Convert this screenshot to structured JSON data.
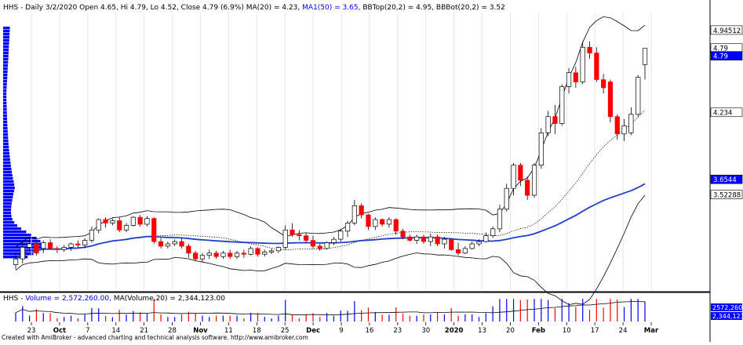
{
  "header": {
    "prefix": "HHS - Daily 3/2/2020 Open 4.65, Hi 4.79, Lo 4.52, Close 4.79 (6.9%) MA(20) = 4.23,",
    "ma50": "MA1(50) = 3.65,",
    "bb": "BBTop(20,2) = 4.95, BBBot(20,2) = 3.52"
  },
  "volume_header": {
    "prefix": "HHS - ",
    "vol": "Volume = 2,572,260.00,",
    "ma": "MA(Volume,20) = 2,344,123.00"
  },
  "footer": "Created with AmiBroker - advanced charting and technical analysis software. http://www.amibroker.com",
  "colors": {
    "up": "#ffffff",
    "down": "#ff0000",
    "blue": "#0000ff",
    "ma50": "#1f3fc8",
    "bb": "#000000",
    "profile": "#0000ff"
  },
  "chart_data": [
    {
      "type": "candlestick",
      "ylim": [
        2.7,
        5.1
      ],
      "x_ticks": [
        "23",
        "Oct",
        "7",
        "14",
        "21",
        "28",
        "Nov",
        "11",
        "18",
        "25",
        "Dec",
        "9",
        "16",
        "23",
        "30",
        "2020",
        "13",
        "20",
        "Feb",
        "10",
        "17",
        "24",
        "Mar"
      ],
      "y_labels": [
        {
          "value": 4.94512,
          "text": "4.94512",
          "style": "white"
        },
        {
          "value": 4.79,
          "text": "4.79",
          "style": "white"
        },
        {
          "value": 4.79,
          "text": "4.79",
          "style": "blue",
          "offset": 10
        },
        {
          "value": 4.234,
          "text": "4.234",
          "style": "white"
        },
        {
          "value": 3.6544,
          "text": "3.6544",
          "style": "blue"
        },
        {
          "value": 3.52288,
          "text": "3.52288",
          "style": "white"
        }
      ],
      "candles": [
        {
          "o": 2.92,
          "h": 3.02,
          "l": 2.88,
          "c": 2.97
        },
        {
          "o": 2.97,
          "h": 3.12,
          "l": 2.93,
          "c": 3.07
        },
        {
          "o": 3.07,
          "h": 3.14,
          "l": 3.04,
          "c": 3.1
        },
        {
          "o": 3.1,
          "h": 3.12,
          "l": 3.0,
          "c": 3.02
        },
        {
          "o": 3.06,
          "h": 3.13,
          "l": 3.02,
          "c": 3.11
        },
        {
          "o": 3.11,
          "h": 3.14,
          "l": 3.05,
          "c": 3.06
        },
        {
          "o": 3.06,
          "h": 3.08,
          "l": 3.02,
          "c": 3.05
        },
        {
          "o": 3.05,
          "h": 3.09,
          "l": 3.03,
          "c": 3.07
        },
        {
          "o": 3.07,
          "h": 3.11,
          "l": 3.04,
          "c": 3.1
        },
        {
          "o": 3.1,
          "h": 3.13,
          "l": 3.07,
          "c": 3.09
        },
        {
          "o": 3.09,
          "h": 3.15,
          "l": 3.06,
          "c": 3.13
        },
        {
          "o": 3.13,
          "h": 3.25,
          "l": 3.11,
          "c": 3.22
        },
        {
          "o": 3.22,
          "h": 3.32,
          "l": 3.19,
          "c": 3.31
        },
        {
          "o": 3.31,
          "h": 3.33,
          "l": 3.24,
          "c": 3.28
        },
        {
          "o": 3.28,
          "h": 3.32,
          "l": 3.26,
          "c": 3.3
        },
        {
          "o": 3.3,
          "h": 3.33,
          "l": 3.2,
          "c": 3.22
        },
        {
          "o": 3.22,
          "h": 3.28,
          "l": 3.2,
          "c": 3.26
        },
        {
          "o": 3.26,
          "h": 3.34,
          "l": 3.25,
          "c": 3.33
        },
        {
          "o": 3.33,
          "h": 3.35,
          "l": 3.25,
          "c": 3.27
        },
        {
          "o": 3.27,
          "h": 3.34,
          "l": 3.25,
          "c": 3.32
        },
        {
          "o": 3.32,
          "h": 3.33,
          "l": 3.1,
          "c": 3.12
        },
        {
          "o": 3.12,
          "h": 3.15,
          "l": 3.06,
          "c": 3.08
        },
        {
          "o": 3.08,
          "h": 3.12,
          "l": 3.06,
          "c": 3.1
        },
        {
          "o": 3.1,
          "h": 3.14,
          "l": 3.08,
          "c": 3.12
        },
        {
          "o": 3.12,
          "h": 3.15,
          "l": 3.06,
          "c": 3.08
        },
        {
          "o": 3.08,
          "h": 3.1,
          "l": 2.98,
          "c": 3.02
        },
        {
          "o": 3.02,
          "h": 3.04,
          "l": 2.95,
          "c": 2.97
        },
        {
          "o": 2.97,
          "h": 3.02,
          "l": 2.94,
          "c": 3.0
        },
        {
          "o": 3.0,
          "h": 3.05,
          "l": 2.97,
          "c": 3.02
        },
        {
          "o": 3.02,
          "h": 3.04,
          "l": 2.97,
          "c": 2.99
        },
        {
          "o": 2.99,
          "h": 3.04,
          "l": 2.97,
          "c": 3.02
        },
        {
          "o": 3.02,
          "h": 3.05,
          "l": 2.97,
          "c": 2.99
        },
        {
          "o": 2.99,
          "h": 3.04,
          "l": 2.97,
          "c": 3.02
        },
        {
          "o": 3.02,
          "h": 3.05,
          "l": 2.98,
          "c": 3.01
        },
        {
          "o": 3.01,
          "h": 3.08,
          "l": 3.0,
          "c": 3.06
        },
        {
          "o": 3.06,
          "h": 3.07,
          "l": 2.99,
          "c": 3.01
        },
        {
          "o": 3.01,
          "h": 3.05,
          "l": 2.99,
          "c": 3.03
        },
        {
          "o": 3.03,
          "h": 3.06,
          "l": 3.01,
          "c": 3.04
        },
        {
          "o": 3.04,
          "h": 3.08,
          "l": 3.02,
          "c": 3.07
        },
        {
          "o": 3.07,
          "h": 3.26,
          "l": 3.05,
          "c": 3.22
        },
        {
          "o": 3.22,
          "h": 3.28,
          "l": 3.16,
          "c": 3.18
        },
        {
          "o": 3.18,
          "h": 3.22,
          "l": 3.13,
          "c": 3.17
        },
        {
          "o": 3.17,
          "h": 3.19,
          "l": 3.11,
          "c": 3.13
        },
        {
          "o": 3.13,
          "h": 3.17,
          "l": 3.06,
          "c": 3.08
        },
        {
          "o": 3.08,
          "h": 3.1,
          "l": 3.04,
          "c": 3.06
        },
        {
          "o": 3.06,
          "h": 3.12,
          "l": 3.05,
          "c": 3.11
        },
        {
          "o": 3.11,
          "h": 3.16,
          "l": 3.09,
          "c": 3.14
        },
        {
          "o": 3.14,
          "h": 3.23,
          "l": 3.12,
          "c": 3.21
        },
        {
          "o": 3.21,
          "h": 3.3,
          "l": 3.16,
          "c": 3.28
        },
        {
          "o": 3.28,
          "h": 3.48,
          "l": 3.26,
          "c": 3.43
        },
        {
          "o": 3.43,
          "h": 3.45,
          "l": 3.32,
          "c": 3.35
        },
        {
          "o": 3.35,
          "h": 3.36,
          "l": 3.22,
          "c": 3.25
        },
        {
          "o": 3.25,
          "h": 3.33,
          "l": 3.22,
          "c": 3.31
        },
        {
          "o": 3.31,
          "h": 3.32,
          "l": 3.25,
          "c": 3.27
        },
        {
          "o": 3.27,
          "h": 3.33,
          "l": 3.24,
          "c": 3.31
        },
        {
          "o": 3.31,
          "h": 3.32,
          "l": 3.18,
          "c": 3.21
        },
        {
          "o": 3.21,
          "h": 3.23,
          "l": 3.14,
          "c": 3.16
        },
        {
          "o": 3.16,
          "h": 3.18,
          "l": 3.12,
          "c": 3.13
        },
        {
          "o": 3.13,
          "h": 3.18,
          "l": 3.1,
          "c": 3.16
        },
        {
          "o": 3.16,
          "h": 3.18,
          "l": 3.1,
          "c": 3.12
        },
        {
          "o": 3.12,
          "h": 3.19,
          "l": 3.08,
          "c": 3.16
        },
        {
          "o": 3.16,
          "h": 3.18,
          "l": 3.08,
          "c": 3.1
        },
        {
          "o": 3.1,
          "h": 3.16,
          "l": 3.06,
          "c": 3.14
        },
        {
          "o": 3.14,
          "h": 3.15,
          "l": 3.04,
          "c": 3.05
        },
        {
          "o": 3.05,
          "h": 3.11,
          "l": 3.0,
          "c": 3.02
        },
        {
          "o": 3.02,
          "h": 3.08,
          "l": 3.01,
          "c": 3.06
        },
        {
          "o": 3.06,
          "h": 3.12,
          "l": 3.05,
          "c": 3.1
        },
        {
          "o": 3.1,
          "h": 3.14,
          "l": 3.08,
          "c": 3.12
        },
        {
          "o": 3.12,
          "h": 3.2,
          "l": 3.11,
          "c": 3.17
        },
        {
          "o": 3.17,
          "h": 3.25,
          "l": 3.15,
          "c": 3.23
        },
        {
          "o": 3.23,
          "h": 3.44,
          "l": 3.2,
          "c": 3.4
        },
        {
          "o": 3.4,
          "h": 3.62,
          "l": 3.38,
          "c": 3.58
        },
        {
          "o": 3.58,
          "h": 3.8,
          "l": 3.52,
          "c": 3.78
        },
        {
          "o": 3.78,
          "h": 3.8,
          "l": 3.6,
          "c": 3.65
        },
        {
          "o": 3.65,
          "h": 3.68,
          "l": 3.48,
          "c": 3.52
        },
        {
          "o": 3.52,
          "h": 3.8,
          "l": 3.5,
          "c": 3.78
        },
        {
          "o": 3.78,
          "h": 4.1,
          "l": 3.75,
          "c": 4.06
        },
        {
          "o": 4.06,
          "h": 4.25,
          "l": 4.03,
          "c": 4.2
        },
        {
          "o": 4.2,
          "h": 4.3,
          "l": 4.05,
          "c": 4.14
        },
        {
          "o": 4.14,
          "h": 4.48,
          "l": 4.12,
          "c": 4.46
        },
        {
          "o": 4.46,
          "h": 4.62,
          "l": 4.4,
          "c": 4.58
        },
        {
          "o": 4.58,
          "h": 4.63,
          "l": 4.45,
          "c": 4.5
        },
        {
          "o": 4.5,
          "h": 4.85,
          "l": 4.48,
          "c": 4.8
        },
        {
          "o": 4.8,
          "h": 4.85,
          "l": 4.7,
          "c": 4.75
        },
        {
          "o": 4.75,
          "h": 4.8,
          "l": 4.5,
          "c": 4.52
        },
        {
          "o": 4.52,
          "h": 4.57,
          "l": 4.4,
          "c": 4.45
        },
        {
          "o": 4.5,
          "h": 4.52,
          "l": 4.15,
          "c": 4.2
        },
        {
          "o": 4.2,
          "h": 4.22,
          "l": 4.0,
          "c": 4.05
        },
        {
          "o": 4.05,
          "h": 4.18,
          "l": 3.99,
          "c": 4.12
        },
        {
          "o": 4.06,
          "h": 4.28,
          "l": 4.04,
          "c": 4.22
        },
        {
          "o": 4.22,
          "h": 4.56,
          "l": 4.2,
          "c": 4.54
        },
        {
          "o": 4.65,
          "h": 4.79,
          "l": 4.52,
          "c": 4.79
        }
      ],
      "volume_scale": 1.27
    }
  ]
}
